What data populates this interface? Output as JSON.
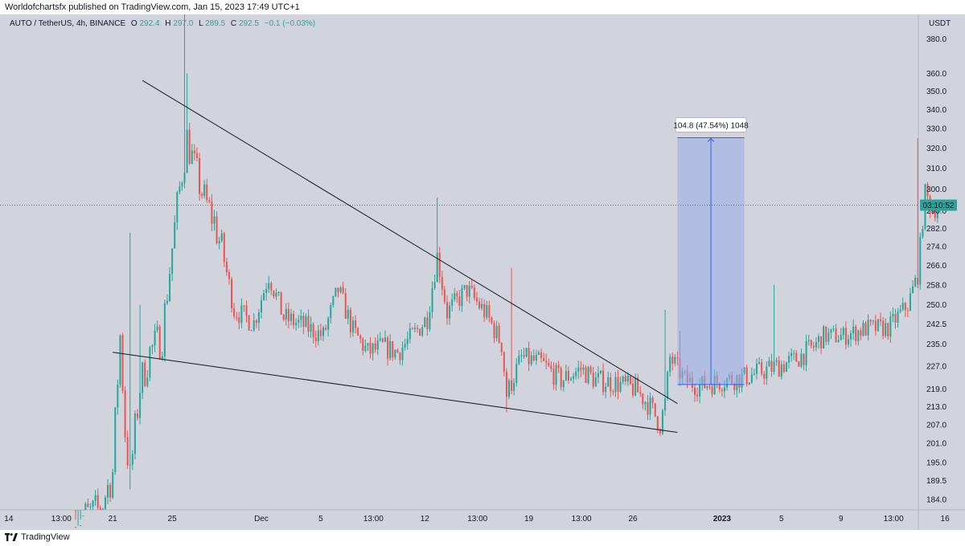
{
  "header": {
    "published": "Worldofchartsfx published on TradingView.com, Jan 15, 2023 17:49 UTC+1"
  },
  "footer": {
    "brand": "TradingView"
  },
  "legend": {
    "symbol": "AUTO / TetherUS, 4h, BINANCE",
    "o_label": "O",
    "o": "292.4",
    "h_label": "H",
    "h": "297.0",
    "l_label": "L",
    "l": "289.5",
    "c_label": "C",
    "c": "292.5",
    "change": "−0.1 (−0.03%)"
  },
  "price_axis": {
    "currency": "USDT",
    "current_price": 292.5,
    "countdown": "03:10:52",
    "ticks": [
      "380.0",
      "360.0",
      "350.0",
      "340.0",
      "330.0",
      "320.0",
      "310.0",
      "300.0",
      "290.0",
      "282.0",
      "274.0",
      "266.0",
      "258.0",
      "250.0",
      "242.5",
      "235.0",
      "227.0",
      "219.0",
      "213.0",
      "207.0",
      "201.0",
      "195.0",
      "189.5",
      "184.0"
    ]
  },
  "time_axis": {
    "ticks": [
      "14",
      "13:00",
      "21",
      "25",
      "Dec",
      "5",
      "13:00",
      "12",
      "13:00",
      "19",
      "13:00",
      "26",
      "2023",
      "5",
      "9",
      "13:00",
      "16",
      "13:00"
    ]
  },
  "measure": {
    "label": "104.8 (47.54%) 1048",
    "from": 220.5,
    "to": 325.3
  },
  "colors": {
    "background": "#d1d4dc",
    "up": "#26a69a",
    "down": "#ef5350",
    "measure_fill": "#98a9e6",
    "measure_line": "#2962ff",
    "trendline": "#131722"
  },
  "chart_data": {
    "type": "candlestick",
    "symbol": "AUTO / TetherUS",
    "timeframe": "4h",
    "exchange": "BINANCE",
    "y_scale": "log",
    "ylim": [
      181,
      395
    ],
    "x_range": [
      "2022-11-14",
      "2023-01-16 13:00"
    ],
    "shapes": [
      {
        "type": "trendline",
        "points": [
          [
            "2022-11-23",
            356
          ],
          [
            "2022-12-29",
            214
          ]
        ]
      },
      {
        "type": "trendline",
        "points": [
          [
            "2022-11-21",
            232
          ],
          [
            "2022-12-29",
            204.5
          ]
        ]
      }
    ],
    "waypoints": [
      [
        0,
        178
      ],
      [
        10,
        181
      ],
      [
        15,
        192
      ],
      [
        18,
        238
      ],
      [
        20,
        205
      ],
      [
        22,
        190
      ],
      [
        26,
        220
      ],
      [
        30,
        232
      ],
      [
        35,
        238
      ],
      [
        42,
        300
      ],
      [
        45,
        325
      ],
      [
        48,
        310
      ],
      [
        52,
        295
      ],
      [
        56,
        285
      ],
      [
        60,
        268
      ],
      [
        64,
        248
      ],
      [
        72,
        243
      ],
      [
        78,
        262
      ],
      [
        84,
        245
      ],
      [
        92,
        242
      ],
      [
        100,
        238
      ],
      [
        106,
        256
      ],
      [
        112,
        240
      ],
      [
        118,
        232
      ],
      [
        124,
        234
      ],
      [
        130,
        232
      ],
      [
        136,
        238
      ],
      [
        142,
        245
      ],
      [
        146,
        270
      ],
      [
        150,
        247
      ],
      [
        158,
        256
      ],
      [
        166,
        246
      ],
      [
        172,
        235
      ],
      [
        174,
        217
      ],
      [
        180,
        230
      ],
      [
        188,
        228
      ],
      [
        196,
        222
      ],
      [
        204,
        226
      ],
      [
        210,
        222
      ],
      [
        218,
        221
      ],
      [
        226,
        219
      ],
      [
        232,
        213
      ],
      [
        236,
        207
      ],
      [
        238,
        214
      ],
      [
        240,
        230
      ],
      [
        246,
        222
      ],
      [
        252,
        220
      ],
      [
        262,
        222
      ],
      [
        270,
        223
      ],
      [
        280,
        226
      ],
      [
        290,
        229
      ],
      [
        298,
        234
      ],
      [
        302,
        238
      ],
      [
        310,
        238
      ],
      [
        320,
        241
      ],
      [
        328,
        241
      ],
      [
        336,
        250
      ],
      [
        340,
        262
      ],
      [
        343,
        298
      ],
      [
        346,
        290
      ],
      [
        349,
        292.5
      ]
    ]
  }
}
